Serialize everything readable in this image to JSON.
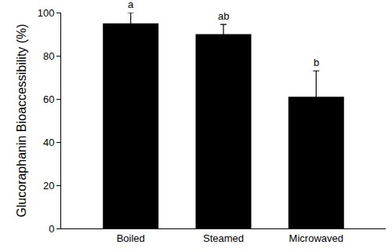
{
  "chart_data": {
    "type": "bar",
    "categories": [
      "Boiled",
      "Steamed",
      "Microwaved"
    ],
    "values": [
      95,
      90,
      61
    ],
    "errors": [
      5,
      4.5,
      12
    ],
    "annotations": [
      "a",
      "ab",
      "b"
    ],
    "y_label": "Glucoraphanin Bioaccessibility (%)",
    "color": "#000000",
    "ylim": [
      0,
      100
    ],
    "yticks": [
      0,
      20,
      40,
      60,
      80,
      100
    ],
    "grid": false
  }
}
